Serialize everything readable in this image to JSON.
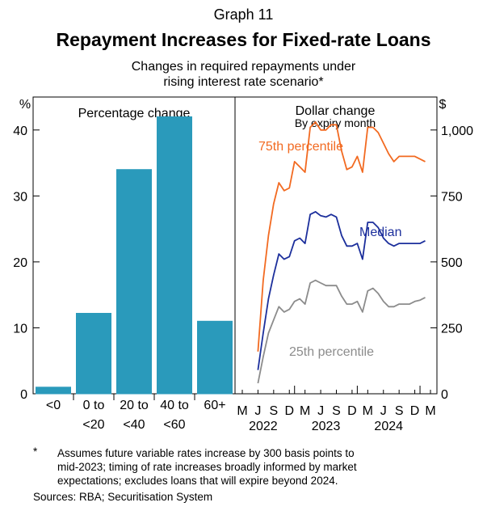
{
  "graph_label": "Graph 11",
  "title": "Repayment Increases for Fixed-rate Loans",
  "subtitle_line1": "Changes in required repayments under",
  "subtitle_line2": "rising interest rate scenario*",
  "colors": {
    "bar": "#2a9abb",
    "p75": "#f26a21",
    "median": "#1c2f9c",
    "p25": "#8c8c8c",
    "axis": "#000000"
  },
  "chart_data": [
    {
      "type": "bar",
      "panel_title": "Percentage change",
      "ylabel": "%",
      "ylim": [
        0,
        45
      ],
      "yticks": [
        0,
        10,
        20,
        30,
        40
      ],
      "categories": [
        {
          "line1": "<0",
          "line2": ""
        },
        {
          "line1": "0 to",
          "line2": "<20"
        },
        {
          "line1": "20 to",
          "line2": "<40"
        },
        {
          "line1": "40 to",
          "line2": "<60"
        },
        {
          "line1": "60+",
          "line2": ""
        }
      ],
      "values": [
        1,
        12.2,
        34,
        42,
        11
      ]
    },
    {
      "type": "line",
      "panel_title": "Dollar change",
      "panel_subtitle": "By expiry month",
      "ylabel": "$",
      "ylim": [
        0,
        1125
      ],
      "yticks": [
        0,
        250,
        500,
        750,
        1000
      ],
      "ytick_labels": [
        "0",
        "250",
        "500",
        "750",
        "1,000"
      ],
      "x_month_labels": [
        "M",
        "J",
        "S",
        "D",
        "M",
        "J",
        "S",
        "D",
        "M",
        "J",
        "S",
        "D",
        "M"
      ],
      "x_year_labels": [
        "2022",
        "2023",
        "2024"
      ],
      "x_index_range": [
        0,
        36
      ],
      "x_index_note": "month index 0 = Mar 2022",
      "series": [
        {
          "name": "75th percentile",
          "x": [
            3,
            4,
            5,
            6,
            7,
            8,
            9,
            10,
            11,
            12,
            13,
            14,
            15,
            16,
            17,
            18,
            19,
            20,
            21,
            22,
            23,
            24,
            25,
            26,
            27,
            28,
            29,
            30,
            31,
            32,
            33,
            34,
            35
          ],
          "values": [
            160,
            430,
            600,
            720,
            800,
            770,
            780,
            880,
            860,
            840,
            1010,
            1030,
            1000,
            1000,
            1020,
            1020,
            920,
            850,
            860,
            900,
            840,
            1010,
            1010,
            990,
            950,
            910,
            880,
            900,
            900,
            900,
            900,
            890,
            880
          ]
        },
        {
          "name": "Median",
          "x": [
            3,
            4,
            5,
            6,
            7,
            8,
            9,
            10,
            11,
            12,
            13,
            14,
            15,
            16,
            17,
            18,
            19,
            20,
            21,
            22,
            23,
            24,
            25,
            26,
            27,
            28,
            29,
            30,
            31,
            32,
            33,
            34,
            35
          ],
          "values": [
            90,
            230,
            360,
            450,
            530,
            510,
            520,
            580,
            590,
            570,
            680,
            690,
            675,
            670,
            680,
            670,
            600,
            560,
            560,
            570,
            510,
            650,
            650,
            630,
            590,
            570,
            560,
            570,
            570,
            570,
            570,
            570,
            580
          ]
        },
        {
          "name": "25th percentile",
          "x": [
            3,
            4,
            5,
            6,
            7,
            8,
            9,
            10,
            11,
            12,
            13,
            14,
            15,
            16,
            17,
            18,
            19,
            20,
            21,
            22,
            23,
            24,
            25,
            26,
            27,
            28,
            29,
            30,
            31,
            32,
            33,
            34,
            35
          ],
          "values": [
            40,
            140,
            230,
            280,
            330,
            310,
            320,
            350,
            360,
            340,
            420,
            430,
            420,
            410,
            410,
            410,
            370,
            340,
            340,
            350,
            310,
            390,
            400,
            380,
            350,
            330,
            330,
            340,
            340,
            340,
            350,
            355,
            365
          ]
        }
      ]
    }
  ],
  "footnote_marker": "*",
  "footnote_line1": "Assumes future variable rates increase by 300 basis points to",
  "footnote_line2": "mid-2023; timing of rate increases broadly informed by market",
  "footnote_line3": "expectations; excludes loans that will expire beyond 2024.",
  "sources": "Sources: RBA; Securitisation System"
}
